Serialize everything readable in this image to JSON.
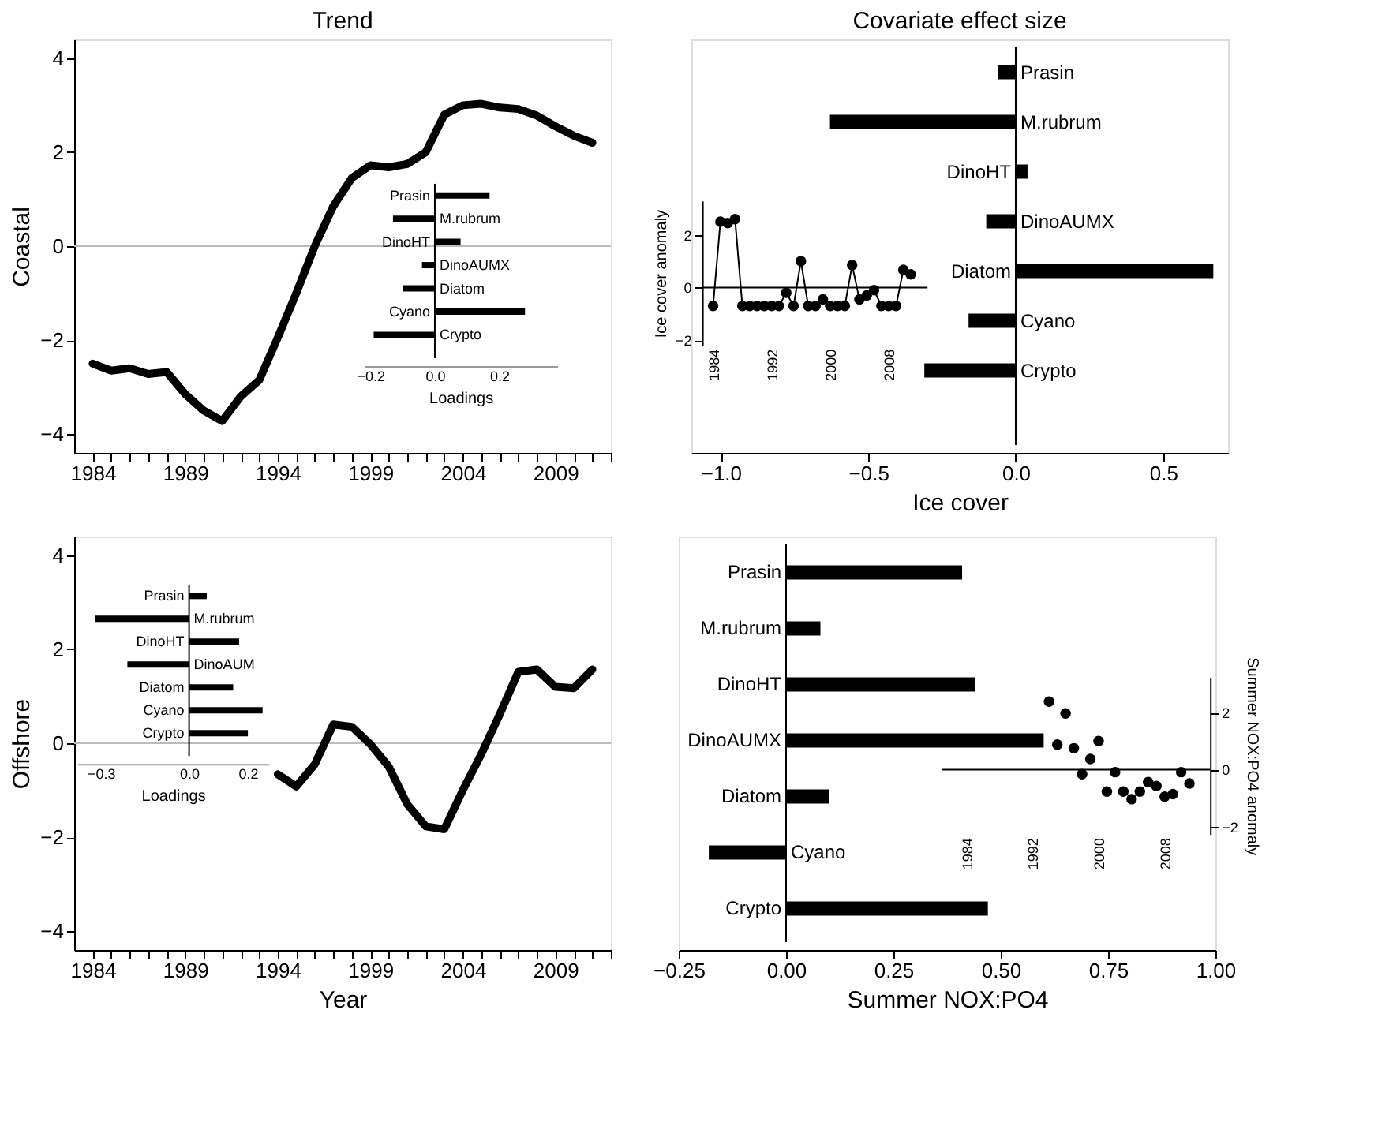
{
  "chart_data": [
    {
      "type": "line",
      "title": "Trend",
      "ylabel": "Coastal",
      "color": "#000000",
      "line_style": "solid",
      "x": [
        1984,
        1985,
        1986,
        1987,
        1988,
        1989,
        1990,
        1991,
        1992,
        1993,
        1994,
        1995,
        1996,
        1997,
        1998,
        1999,
        2000,
        2001,
        2002,
        2003,
        2004,
        2005,
        2006,
        2007,
        2008,
        2009,
        2010,
        2011
      ],
      "values": [
        -2.5,
        -2.65,
        -2.6,
        -2.72,
        -2.68,
        -3.15,
        -3.5,
        -3.72,
        -3.2,
        -2.85,
        -1.95,
        -1.0,
        0.0,
        0.85,
        1.45,
        1.72,
        1.68,
        1.75,
        2.0,
        2.8,
        3.0,
        3.03,
        2.95,
        2.92,
        2.78,
        2.55,
        2.35,
        2.2
      ],
      "xlim": [
        1983,
        2012
      ],
      "ylim": [
        -4.4,
        4.4
      ],
      "xticks": [
        1984,
        {
          "value": 1985,
          "label": null
        },
        {
          "value": 1986,
          "label": null
        },
        {
          "value": 1987,
          "label": null
        },
        {
          "value": 1988,
          "label": null
        },
        1989,
        {
          "value": 1990,
          "label": null
        },
        {
          "value": 1991,
          "label": null
        },
        {
          "value": 1992,
          "label": null
        },
        {
          "value": 1993,
          "label": null
        },
        1994,
        {
          "value": 1995,
          "label": null
        },
        {
          "value": 1996,
          "label": null
        },
        {
          "value": 1997,
          "label": null
        },
        {
          "value": 1998,
          "label": null
        },
        1999,
        {
          "value": 2000,
          "label": null
        },
        {
          "value": 2001,
          "label": null
        },
        {
          "value": 2002,
          "label": null
        },
        {
          "value": 2003,
          "label": null
        },
        2004,
        {
          "value": 2005,
          "label": null
        },
        {
          "value": 2006,
          "label": null
        },
        {
          "value": 2007,
          "label": null
        },
        {
          "value": 2008,
          "label": null
        },
        2009,
        {
          "value": 2010,
          "label": null
        },
        {
          "value": 2011,
          "label": null
        },
        {
          "value": 2012,
          "label": null
        }
      ],
      "yticks": [
        -4,
        -2,
        0,
        2,
        4
      ],
      "ref_lines": [
        {
          "axis": "y",
          "value": 0,
          "color": "#bbbbbb"
        }
      ]
    },
    {
      "type": "bar",
      "orientation": "horizontal",
      "xlabel": "Loadings",
      "color": "#000000",
      "categories": [
        "Prasin",
        "M.rubrum",
        "DinoHT",
        "DinoAUMX",
        "Diatom",
        "Cyano",
        "Crypto"
      ],
      "values": [
        0.17,
        -0.13,
        0.08,
        -0.04,
        -0.1,
        0.28,
        -0.19
      ],
      "xlim": [
        -0.22,
        0.38
      ],
      "xticks": [
        {
          "value": -0.2,
          "label": "−0.2"
        },
        {
          "value": 0,
          "label": "0.0"
        },
        {
          "value": 0.2,
          "label": "0.2"
        }
      ]
    },
    {
      "type": "bar",
      "orientation": "horizontal",
      "title": "Covariate effect size",
      "xlabel": "Ice cover",
      "color": "#000000",
      "categories": [
        "Prasin",
        "M.rubrum",
        "DinoHT",
        "DinoAUMX",
        "Diatom",
        "Cyano",
        "Crypto"
      ],
      "values": [
        -0.06,
        -0.63,
        0.04,
        -0.1,
        0.67,
        -0.16,
        -0.31
      ],
      "xlim": [
        -1.1,
        0.72
      ],
      "xticks": [
        {
          "value": -1,
          "label": "−1.0"
        },
        {
          "value": -0.5,
          "label": "−0.5"
        },
        {
          "value": 0,
          "label": "0.0"
        },
        {
          "value": 0.5,
          "label": "0.5"
        }
      ]
    },
    {
      "type": "line",
      "marker": "circle",
      "line_style": "solid",
      "ylabel": "Ice cover anomaly",
      "color": "#000000",
      "x": [
        1984,
        1985,
        1986,
        1987,
        1988,
        1989,
        1990,
        1991,
        1992,
        1993,
        1994,
        1995,
        1996,
        1997,
        1998,
        1999,
        2000,
        2001,
        2002,
        2003,
        2004,
        2005,
        2006,
        2007,
        2008,
        2009,
        2010,
        2011
      ],
      "values": [
        -0.7,
        2.5,
        2.45,
        2.6,
        -0.7,
        -0.7,
        -0.7,
        -0.7,
        -0.7,
        -0.7,
        -0.2,
        -0.7,
        1.0,
        -0.7,
        -0.7,
        -0.45,
        -0.7,
        -0.7,
        -0.7,
        0.85,
        -0.45,
        -0.3,
        -0.1,
        -0.7,
        -0.7,
        -0.7,
        0.67,
        0.5
      ],
      "xlim": [
        1982.5,
        2013.3
      ],
      "ylim": [
        -2.2,
        3.3
      ],
      "xticks": [
        1984,
        1992,
        2000,
        2008
      ],
      "yticks": [
        -2,
        0,
        2
      ],
      "ref_lines": [
        {
          "axis": "y",
          "value": 0,
          "color": "#000000"
        }
      ]
    },
    {
      "type": "line",
      "ylabel": "Offshore",
      "xlabel": "Year",
      "color": "#000000",
      "line_style": "solid",
      "x": [
        1994,
        1995,
        1996,
        1997,
        1998,
        1999,
        2000,
        2001,
        2002,
        2003,
        2004,
        2005,
        2006,
        2007,
        2008,
        2009,
        2010,
        2011
      ],
      "values": [
        -0.66,
        -0.92,
        -0.45,
        0.4,
        0.35,
        -0.02,
        -0.5,
        -1.3,
        -1.77,
        -1.83,
        -1.0,
        -0.23,
        0.62,
        1.52,
        1.57,
        1.2,
        1.17,
        1.57
      ],
      "xlim": [
        1983,
        2012
      ],
      "ylim": [
        -4.4,
        4.4
      ],
      "xticks": [
        1984,
        {
          "value": 1985,
          "label": null
        },
        {
          "value": 1986,
          "label": null
        },
        {
          "value": 1987,
          "label": null
        },
        {
          "value": 1988,
          "label": null
        },
        1989,
        {
          "value": 1990,
          "label": null
        },
        {
          "value": 1991,
          "label": null
        },
        {
          "value": 1992,
          "label": null
        },
        {
          "value": 1993,
          "label": null
        },
        1994,
        {
          "value": 1995,
          "label": null
        },
        {
          "value": 1996,
          "label": null
        },
        {
          "value": 1997,
          "label": null
        },
        {
          "value": 1998,
          "label": null
        },
        1999,
        {
          "value": 2000,
          "label": null
        },
        {
          "value": 2001,
          "label": null
        },
        {
          "value": 2002,
          "label": null
        },
        {
          "value": 2003,
          "label": null
        },
        2004,
        {
          "value": 2005,
          "label": null
        },
        {
          "value": 2006,
          "label": null
        },
        {
          "value": 2007,
          "label": null
        },
        {
          "value": 2008,
          "label": null
        },
        2009,
        {
          "value": 2010,
          "label": null
        },
        {
          "value": 2011,
          "label": null
        },
        {
          "value": 2012,
          "label": null
        }
      ],
      "yticks": [
        -4,
        -2,
        0,
        2,
        4
      ],
      "ref_lines": [
        {
          "axis": "y",
          "value": 0,
          "color": "#bbbbbb"
        }
      ]
    },
    {
      "type": "bar",
      "orientation": "horizontal",
      "xlabel": "Loadings",
      "color": "#000000",
      "categories": [
        "Prasin",
        "M.rubrum",
        "DinoHT",
        "DinoAUM",
        "Diatom",
        "Cyano",
        "Crypto"
      ],
      "values": [
        0.06,
        -0.32,
        0.17,
        -0.21,
        0.15,
        0.25,
        0.2
      ],
      "xlim": [
        -0.38,
        0.27
      ],
      "xticks": [
        {
          "value": -0.3,
          "label": "−0.3"
        },
        {
          "value": 0,
          "label": "0.0"
        },
        {
          "value": 0.2,
          "label": "0.2"
        }
      ]
    },
    {
      "type": "bar",
      "orientation": "horizontal",
      "xlabel": "Summer NOX:PO4",
      "color": "#000000",
      "categories": [
        "Prasin",
        "M.rubrum",
        "DinoHT",
        "DinoAUMX",
        "Diatom",
        "Cyano",
        "Crypto"
      ],
      "values": [
        0.41,
        0.08,
        0.44,
        0.6,
        0.1,
        -0.18,
        0.47
      ],
      "xlim": [
        -0.25,
        1.0
      ],
      "xticks": [
        {
          "value": -0.25,
          "label": "−0.25"
        },
        {
          "value": 0,
          "label": "0.00"
        },
        {
          "value": 0.25,
          "label": "0.25"
        },
        {
          "value": 0.5,
          "label": "0.50"
        },
        {
          "value": 0.75,
          "label": "0.75"
        },
        {
          "value": 1,
          "label": "1.00"
        }
      ]
    },
    {
      "type": "scatter",
      "marker": "circle",
      "ylabel": "Summer NOX:PO4 anomaly",
      "color": "#000000",
      "x": [
        1994,
        1995,
        1996,
        1997,
        1998,
        1999,
        2000,
        2001,
        2002,
        2003,
        2004,
        2005,
        2006,
        2007,
        2008,
        2009,
        2010,
        2011
      ],
      "values": [
        2.39,
        0.88,
        1.97,
        0.75,
        -0.16,
        0.37,
        1.0,
        -0.77,
        -0.09,
        -0.77,
        -1.04,
        -0.77,
        -0.44,
        -0.58,
        -0.95,
        -0.86,
        -0.09,
        -0.49
      ],
      "xlim": [
        1981,
        2013.5
      ],
      "ylim": [
        -2.27,
        3.25
      ],
      "xticks": [
        1984,
        1992,
        2000,
        2008
      ],
      "yticks": [
        -2,
        0,
        2
      ],
      "ref_lines": [
        {
          "axis": "y",
          "value": 0,
          "color": "#000000"
        }
      ]
    }
  ]
}
